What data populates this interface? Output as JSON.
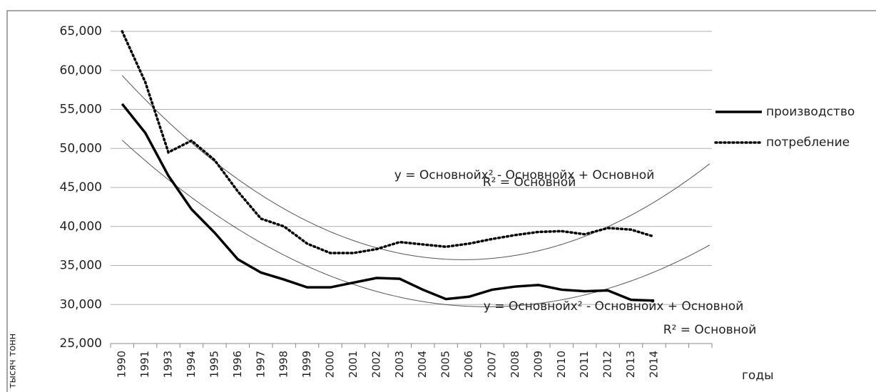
{
  "chart_data": {
    "type": "line",
    "x_label": "годы",
    "y_label": "тысяч тонн",
    "categories": [
      "1990",
      "1991",
      "1993",
      "1994",
      "1995",
      "1996",
      "1997",
      "1998",
      "1999",
      "2000",
      "2001",
      "2002",
      "2003",
      "2004",
      "2005",
      "2006",
      "2007",
      "2008",
      "2009",
      "2010",
      "2011",
      "2012",
      "2013",
      "2014",
      null,
      null
    ],
    "series": [
      {
        "name": "производство",
        "color": "#000000",
        "dash": "solid",
        "trendline": "poly2",
        "trend_equation": "y = Основнойx² - Основнойx + Основной",
        "trend_r2": "R² = Основной",
        "values": [
          55700,
          52000,
          46500,
          42200,
          39200,
          35800,
          34100,
          33200,
          32200,
          32200,
          32800,
          33400,
          33300,
          31900,
          30700,
          31000,
          31900,
          32300,
          32500,
          31900,
          31700,
          31800,
          30600,
          30500,
          null,
          null
        ]
      },
      {
        "name": "потребление",
        "color": "#000000",
        "dash": "dotted",
        "trendline": "poly2",
        "trend_equation": "y = Основнойx² - Основнойx + Основной",
        "trend_r2": "R² = Основной",
        "values": [
          65000,
          58500,
          49500,
          51000,
          48500,
          44500,
          41000,
          40000,
          37800,
          36600,
          36600,
          37100,
          38000,
          37700,
          37400,
          37800,
          38400,
          38900,
          39300,
          39400,
          39000,
          39800,
          39600,
          38700,
          null,
          null
        ]
      }
    ],
    "ylim": [
      25000,
      65000
    ],
    "yticks": [
      {
        "value": 25000,
        "label": "25,000"
      },
      {
        "value": 30000,
        "label": "30,000"
      },
      {
        "value": 35000,
        "label": "35,000"
      },
      {
        "value": 40000,
        "label": "40,000"
      },
      {
        "value": 45000,
        "label": "45,000"
      },
      {
        "value": 50000,
        "label": "50,000"
      },
      {
        "value": 55000,
        "label": "55,000"
      },
      {
        "value": 60000,
        "label": "60,000"
      },
      {
        "value": 65000,
        "label": "65,000"
      }
    ],
    "grid": true,
    "legend": "right"
  }
}
